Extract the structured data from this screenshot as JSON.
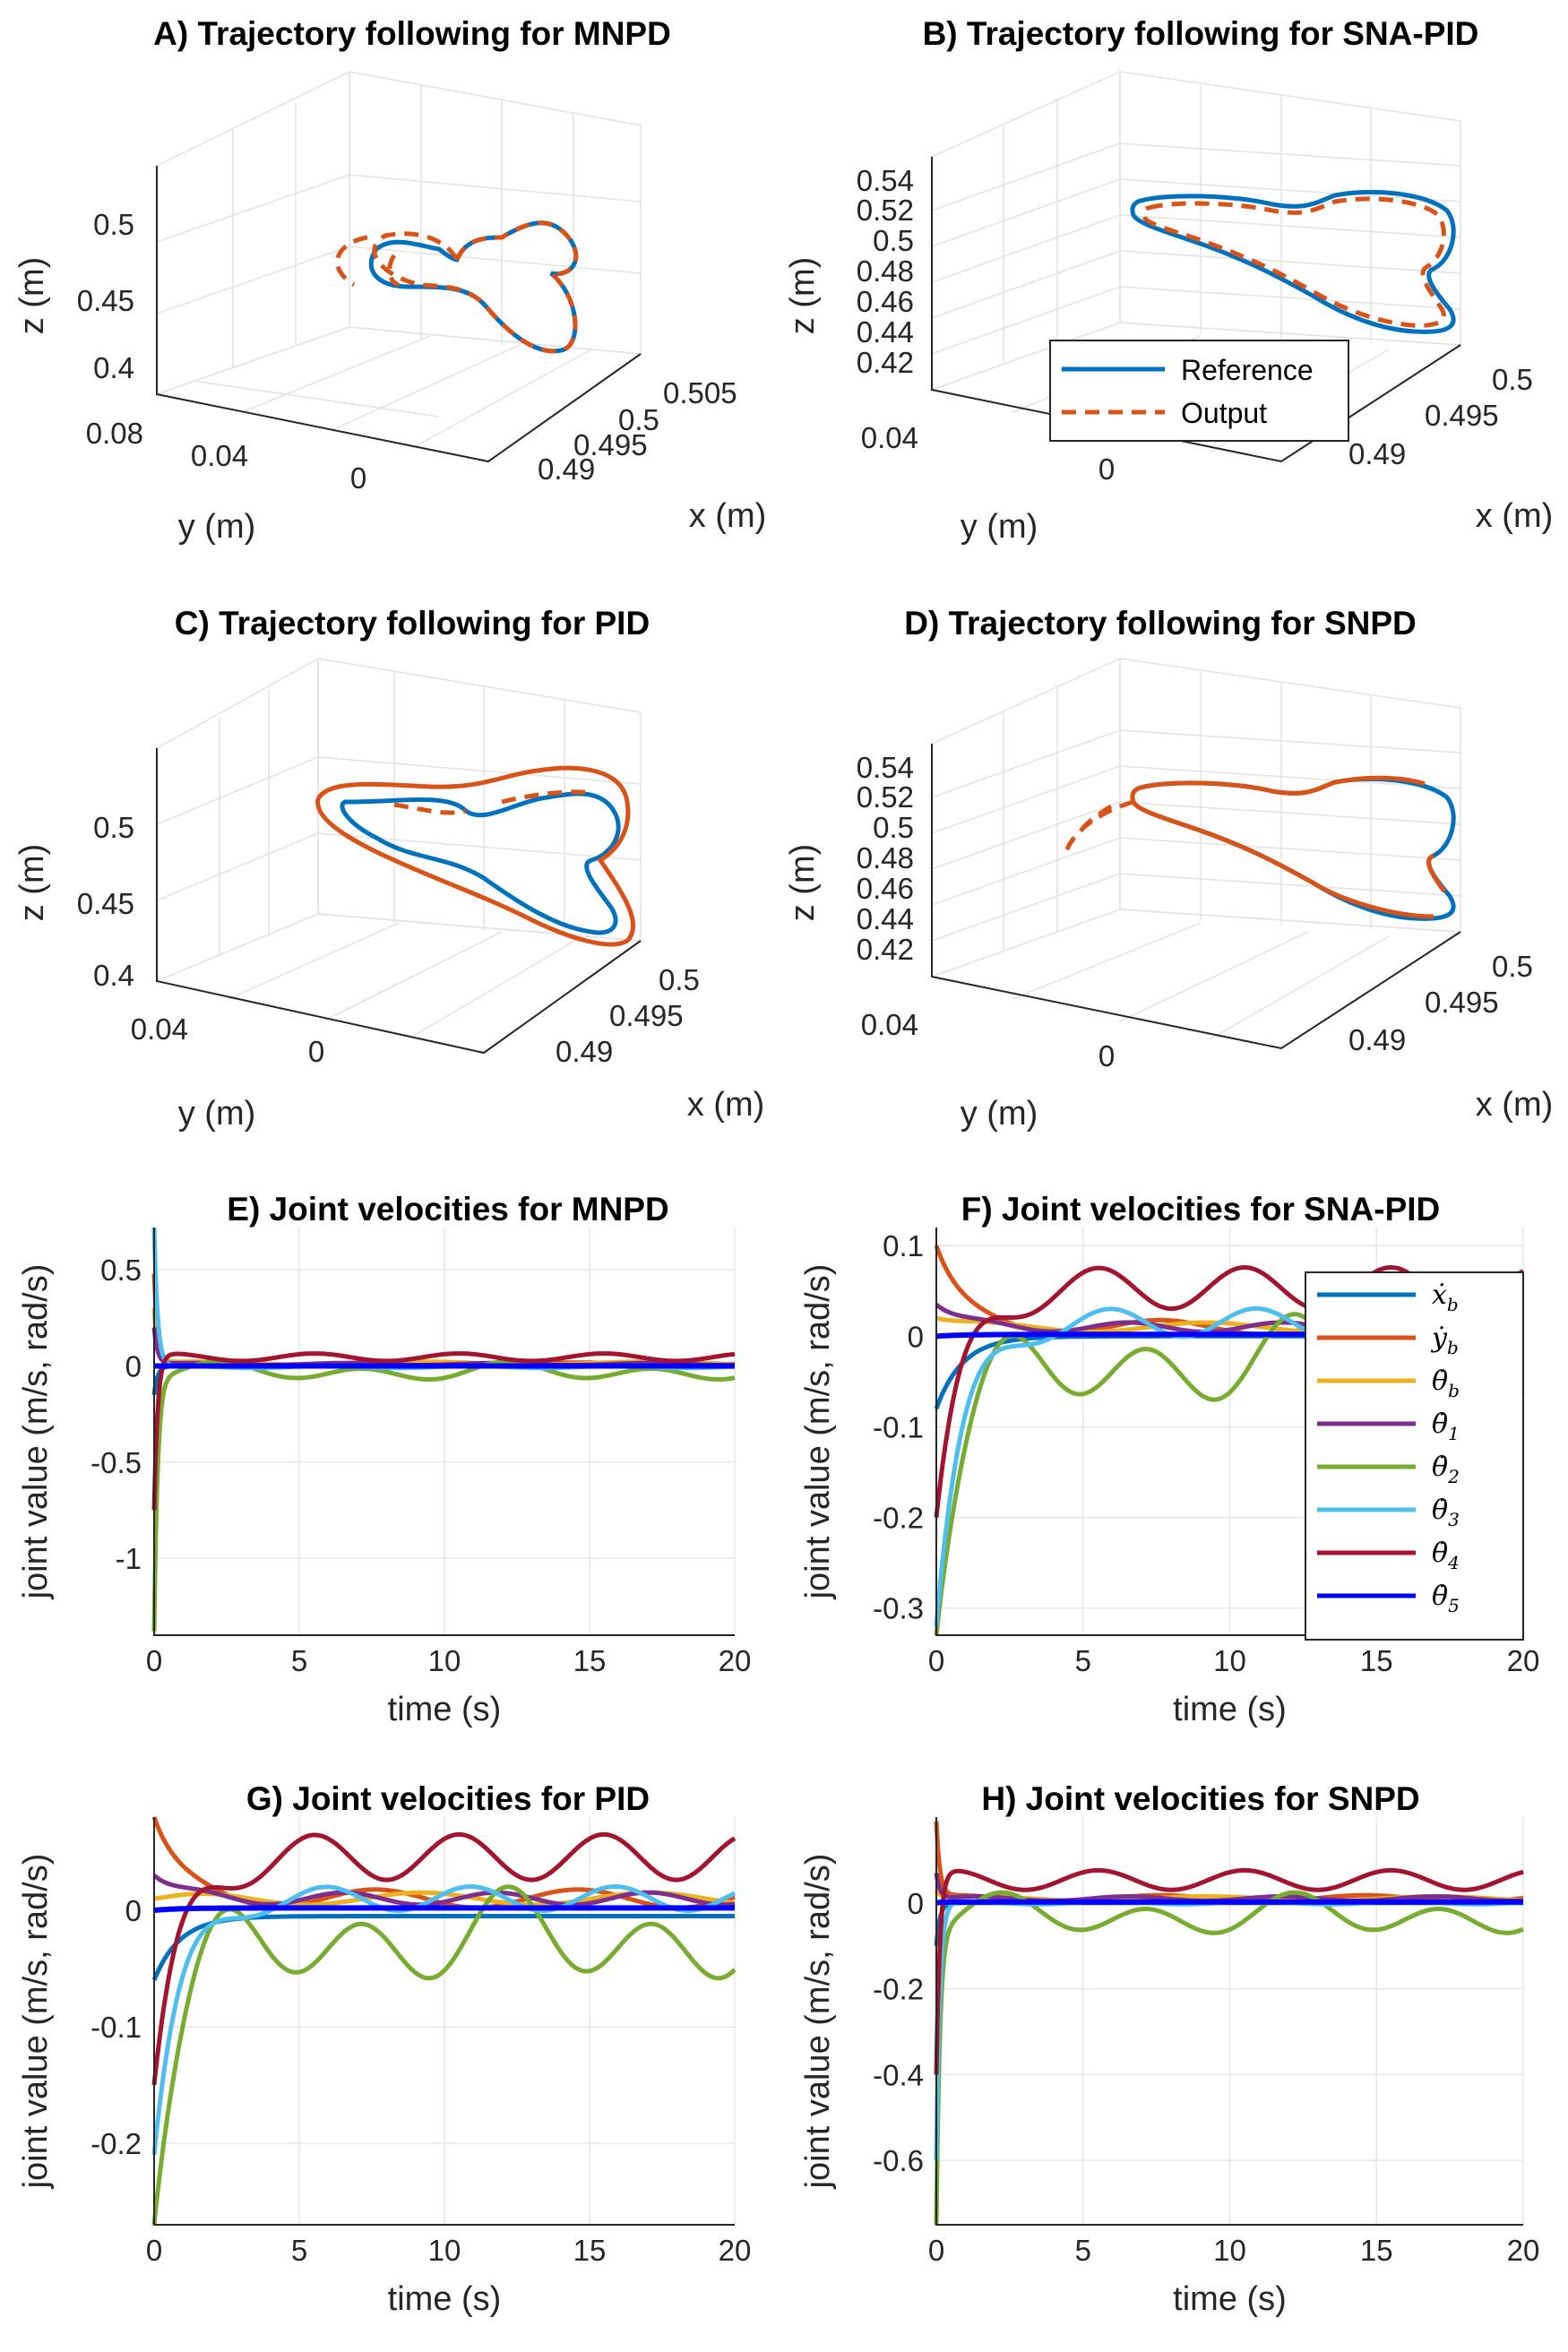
{
  "colors": {
    "reference": "#0072BD",
    "output": "#D95319",
    "x_b": "#0072BD",
    "y_b": "#D95319",
    "theta_b": "#EDB120",
    "theta_1": "#7E2F8E",
    "theta_2": "#77AC30",
    "theta_3": "#4DBEEE",
    "theta_4": "#A2142F",
    "theta_5": "#0000FF"
  },
  "legend_traj": {
    "reference": "Reference",
    "output": "Output"
  },
  "legend_vel": {
    "x_b": "ẋ",
    "x_b_sub": "b",
    "y_b": "ẏ",
    "y_b_sub": "b",
    "theta_b": "θ̇",
    "theta_b_sub": "b",
    "theta_1": "θ̇",
    "theta_1_sub": "1",
    "theta_2": "θ̇",
    "theta_2_sub": "2",
    "theta_3": "θ̇",
    "theta_3_sub": "3",
    "theta_4": "θ̇",
    "theta_4_sub": "4",
    "theta_5": "θ̇",
    "theta_5_sub": "5"
  },
  "chart_data": [
    {
      "type": "line3d",
      "title": "A) Trajectory following for MNPD",
      "xlabel": "x (m)",
      "ylabel": "y (m)",
      "zlabel": "z (m)",
      "x_ticks": [
        "0.505",
        "0.5",
        "0.495",
        "0.49"
      ],
      "y_ticks": [
        "0.08",
        "0.04",
        "0"
      ],
      "z_ticks": [
        "0.5",
        "0.45",
        "0.4"
      ],
      "series": [
        {
          "name": "Reference"
        },
        {
          "name": "Output"
        }
      ]
    },
    {
      "type": "line3d",
      "title": "B) Trajectory following for SNA-PID",
      "xlabel": "x (m)",
      "ylabel": "y (m)",
      "zlabel": "z (m)",
      "x_ticks": [
        "0.5",
        "0.495",
        "0.49"
      ],
      "y_ticks": [
        "0.04",
        "0"
      ],
      "z_ticks": [
        "0.54",
        "0.52",
        "0.5",
        "0.48",
        "0.46",
        "0.44",
        "0.42"
      ],
      "series": [
        {
          "name": "Reference"
        },
        {
          "name": "Output"
        }
      ]
    },
    {
      "type": "line3d",
      "title": "C) Trajectory following for PID",
      "xlabel": "x (m)",
      "ylabel": "y (m)",
      "zlabel": "z (m)",
      "x_ticks": [
        "0.5",
        "0.495",
        "0.49"
      ],
      "y_ticks": [
        "0.04",
        "0"
      ],
      "z_ticks": [
        "0.5",
        "0.45",
        "0.4"
      ],
      "series": [
        {
          "name": "Reference"
        },
        {
          "name": "Output"
        }
      ]
    },
    {
      "type": "line3d",
      "title": "D) Trajectory following for SNPD",
      "xlabel": "x (m)",
      "ylabel": "y (m)",
      "zlabel": "z (m)",
      "x_ticks": [
        "0.5",
        "0.495",
        "0.49"
      ],
      "y_ticks": [
        "0.04",
        "0"
      ],
      "z_ticks": [
        "0.54",
        "0.52",
        "0.5",
        "0.48",
        "0.46",
        "0.44",
        "0.42"
      ],
      "series": [
        {
          "name": "Reference"
        },
        {
          "name": "Output"
        }
      ]
    },
    {
      "type": "line",
      "title": "E) Joint velocities for MNPD",
      "xlabel": "time (s)",
      "ylabel": "joint value (m/s, rad/s)",
      "xlim": [
        0,
        20
      ],
      "ylim": [
        -1.4,
        0.72
      ],
      "x_ticks": [
        0,
        5,
        10,
        15,
        20
      ],
      "y_ticks": [
        0.5,
        0,
        -0.5,
        -1
      ],
      "y_tick_labels": [
        "0.5",
        "0",
        "-0.5",
        "-1"
      ],
      "grid": true,
      "spikes": {
        "x_b": -0.15,
        "y_b": 0.48,
        "theta_b": 0.3,
        "theta_1": 0.2,
        "theta_2": -1.38,
        "theta_3": 0.72,
        "theta_4": -0.75,
        "theta_5": 0.0
      },
      "steady": {
        "x_b": 0.0,
        "y_b": 0.01,
        "theta_b": 0.015,
        "theta_1": 0.01,
        "theta_2": -0.03,
        "theta_3": -0.005,
        "theta_4": 0.03,
        "theta_5": 0.0
      }
    },
    {
      "type": "line",
      "title": "F) Joint velocities for SNA-PID",
      "xlabel": "time (s)",
      "ylabel": "joint value (m/s, rad/s)",
      "xlim": [
        0,
        20
      ],
      "ylim": [
        -0.33,
        0.12
      ],
      "x_ticks": [
        0,
        5,
        10,
        15,
        20
      ],
      "y_ticks": [
        0.1,
        0,
        -0.1,
        -0.2,
        -0.3
      ],
      "y_tick_labels": [
        "0.1",
        "0",
        "-0.1",
        "-0.2",
        "-0.3"
      ],
      "grid": true,
      "legend": "top-right",
      "spikes": {
        "x_b": -0.08,
        "y_b": 0.1,
        "theta_b": 0.02,
        "theta_1": 0.035,
        "theta_2": -0.33,
        "theta_3": -0.32,
        "theta_4": -0.2,
        "theta_5": 0.0
      },
      "steady": {
        "x_b": 0.0,
        "y_b": 0.01,
        "theta_b": 0.01,
        "theta_1": 0.01,
        "theta_2": -0.03,
        "theta_3": 0.015,
        "theta_4": 0.035,
        "theta_5": 0.002
      }
    },
    {
      "type": "line",
      "title": "G) Joint velocities for PID",
      "xlabel": "time (s)",
      "ylabel": "joint value (m/s, rad/s)",
      "xlim": [
        0,
        20
      ],
      "ylim": [
        -0.27,
        0.08
      ],
      "x_ticks": [
        0,
        5,
        10,
        15,
        20
      ],
      "y_ticks": [
        0,
        -0.1,
        -0.2
      ],
      "y_tick_labels": [
        "0",
        "-0.1",
        "-0.2"
      ],
      "grid": true,
      "spikes": {
        "x_b": -0.06,
        "y_b": 0.08,
        "theta_b": 0.01,
        "theta_1": 0.03,
        "theta_2": -0.27,
        "theta_3": -0.21,
        "theta_4": -0.15,
        "theta_5": 0.0
      },
      "steady": {
        "x_b": -0.005,
        "y_b": 0.01,
        "theta_b": 0.01,
        "theta_1": 0.01,
        "theta_2": -0.025,
        "theta_3": 0.01,
        "theta_4": 0.03,
        "theta_5": 0.002
      }
    },
    {
      "type": "line",
      "title": "H) Joint velocities for SNPD",
      "xlabel": "time (s)",
      "ylabel": "joint value (m/s, rad/s)",
      "xlim": [
        0,
        20
      ],
      "ylim": [
        -0.75,
        0.2
      ],
      "x_ticks": [
        0,
        5,
        10,
        15,
        20
      ],
      "y_ticks": [
        0,
        -0.2,
        -0.4,
        -0.6
      ],
      "y_tick_labels": [
        "0",
        "-0.2",
        "-0.4",
        "-0.6"
      ],
      "grid": true,
      "spikes": {
        "x_b": -0.1,
        "y_b": 0.19,
        "theta_b": 0.03,
        "theta_1": 0.07,
        "theta_2": -0.75,
        "theta_3": -0.6,
        "theta_4": -0.4,
        "theta_5": 0.0
      },
      "steady": {
        "x_b": 0.0,
        "y_b": 0.01,
        "theta_b": 0.01,
        "theta_1": 0.01,
        "theta_2": -0.03,
        "theta_3": 0.0,
        "theta_4": 0.035,
        "theta_5": 0.002
      }
    }
  ]
}
